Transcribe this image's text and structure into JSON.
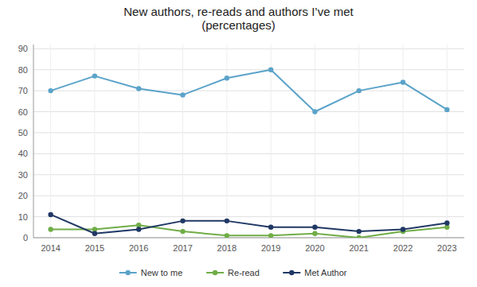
{
  "chart_data": {
    "type": "line",
    "title": "New authors, re-reads and authors I’ve met\n(percentages)",
    "categories": [
      "2014",
      "2015",
      "2016",
      "2017",
      "2018",
      "2019",
      "2020",
      "2021",
      "2022",
      "2023"
    ],
    "series": [
      {
        "name": "New to me",
        "color": "#5BA3C9",
        "values": [
          70,
          77,
          71,
          68,
          76,
          80,
          60,
          70,
          74,
          61
        ]
      },
      {
        "name": "Re-read",
        "color": "#70AD47",
        "values": [
          4,
          4,
          6,
          3,
          1,
          1,
          2,
          0,
          3,
          5
        ]
      },
      {
        "name": "Met Author",
        "color": "#203864",
        "values": [
          11,
          2,
          4,
          8,
          8,
          5,
          5,
          3,
          4,
          7
        ]
      }
    ],
    "ylim": [
      0,
      92
    ],
    "yticks": [
      0,
      10,
      20,
      30,
      40,
      50,
      60,
      70,
      80,
      90
    ],
    "grid": true,
    "legend": "bottom",
    "marker": "circle"
  }
}
